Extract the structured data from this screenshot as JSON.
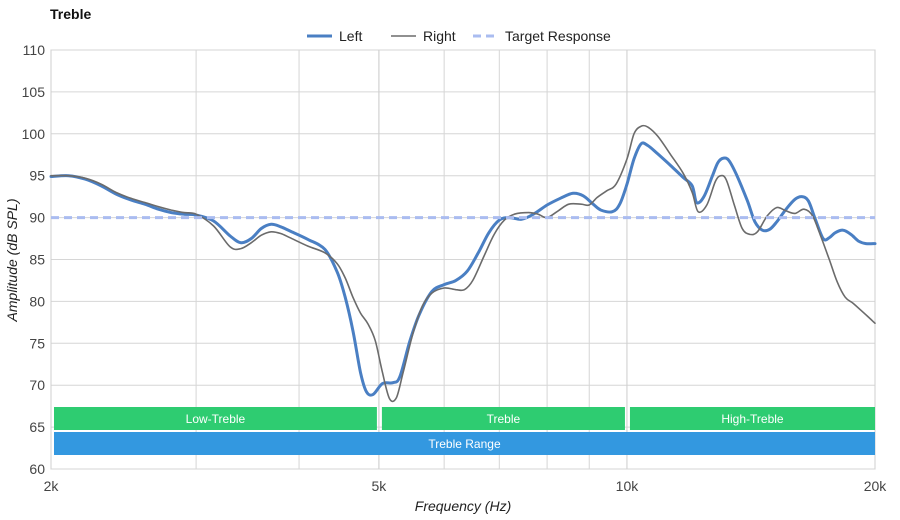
{
  "title": "Treble",
  "chart_data": {
    "type": "line",
    "title": "Treble",
    "xlabel": "Frequency (Hz)",
    "ylabel": "Amplitude (dB SPL)",
    "xscale": "log",
    "xlim": [
      2000,
      20000
    ],
    "ylim": [
      60,
      110
    ],
    "x_ticks": [
      {
        "value": 2000,
        "label": "2k"
      },
      {
        "value": 5000,
        "label": "5k"
      },
      {
        "value": 10000,
        "label": "10k"
      },
      {
        "value": 20000,
        "label": "20k"
      }
    ],
    "y_ticks": [
      60,
      65,
      70,
      75,
      80,
      85,
      90,
      95,
      100,
      105,
      110
    ],
    "grid": true,
    "legend": {
      "position": "top-center"
    },
    "series": [
      {
        "name": "Left",
        "color": "#4a7fc3",
        "style": "solid",
        "points": [
          [
            2000,
            94.9
          ],
          [
            2100,
            95.0
          ],
          [
            2200,
            94.6
          ],
          [
            2300,
            93.8
          ],
          [
            2400,
            92.8
          ],
          [
            2500,
            92.1
          ],
          [
            2600,
            91.6
          ],
          [
            2700,
            91.0
          ],
          [
            2800,
            90.6
          ],
          [
            2900,
            90.4
          ],
          [
            3000,
            90.3
          ],
          [
            3150,
            89.6
          ],
          [
            3300,
            87.8
          ],
          [
            3400,
            87.0
          ],
          [
            3500,
            87.5
          ],
          [
            3600,
            88.7
          ],
          [
            3700,
            89.2
          ],
          [
            3800,
            88.9
          ],
          [
            3900,
            88.4
          ],
          [
            4100,
            87.4
          ],
          [
            4300,
            86.2
          ],
          [
            4450,
            83.5
          ],
          [
            4550,
            80.5
          ],
          [
            4650,
            76.5
          ],
          [
            4750,
            71.5
          ],
          [
            4830,
            69.2
          ],
          [
            4920,
            68.9
          ],
          [
            5050,
            70.2
          ],
          [
            5200,
            70.3
          ],
          [
            5300,
            71.0
          ],
          [
            5450,
            75.2
          ],
          [
            5600,
            78.5
          ],
          [
            5800,
            81.2
          ],
          [
            6000,
            82.0
          ],
          [
            6200,
            82.5
          ],
          [
            6400,
            83.6
          ],
          [
            6600,
            85.8
          ],
          [
            6800,
            88.2
          ],
          [
            7000,
            89.7
          ],
          [
            7200,
            90.0
          ],
          [
            7450,
            89.8
          ],
          [
            7700,
            90.4
          ],
          [
            8000,
            91.5
          ],
          [
            8300,
            92.3
          ],
          [
            8600,
            92.9
          ],
          [
            8850,
            92.6
          ],
          [
            9100,
            91.6
          ],
          [
            9300,
            90.9
          ],
          [
            9600,
            90.7
          ],
          [
            9800,
            91.6
          ],
          [
            10000,
            94.0
          ],
          [
            10200,
            97.0
          ],
          [
            10400,
            98.8
          ],
          [
            10600,
            98.6
          ],
          [
            10900,
            97.6
          ],
          [
            11300,
            96.2
          ],
          [
            11700,
            94.8
          ],
          [
            12000,
            93.8
          ],
          [
            12150,
            91.8
          ],
          [
            12400,
            92.5
          ],
          [
            12700,
            95.0
          ],
          [
            12900,
            96.6
          ],
          [
            13100,
            97.1
          ],
          [
            13300,
            96.8
          ],
          [
            13600,
            95.0
          ],
          [
            14000,
            92.0
          ],
          [
            14300,
            89.5
          ],
          [
            14600,
            88.5
          ],
          [
            14900,
            88.6
          ],
          [
            15200,
            89.5
          ],
          [
            15600,
            91.0
          ],
          [
            16000,
            92.2
          ],
          [
            16300,
            92.5
          ],
          [
            16600,
            92.0
          ],
          [
            16900,
            90.0
          ],
          [
            17300,
            87.5
          ],
          [
            17600,
            87.6
          ],
          [
            17900,
            88.2
          ],
          [
            18300,
            88.5
          ],
          [
            18700,
            88.0
          ],
          [
            19100,
            87.2
          ],
          [
            19500,
            86.9
          ],
          [
            20000,
            86.9
          ]
        ]
      },
      {
        "name": "Right",
        "color": "#6b6b6b",
        "style": "solid",
        "points": [
          [
            2000,
            95.0
          ],
          [
            2100,
            95.0
          ],
          [
            2200,
            94.7
          ],
          [
            2300,
            94.0
          ],
          [
            2400,
            93.0
          ],
          [
            2500,
            92.3
          ],
          [
            2600,
            91.8
          ],
          [
            2700,
            91.3
          ],
          [
            2800,
            90.9
          ],
          [
            2900,
            90.6
          ],
          [
            3000,
            90.4
          ],
          [
            3150,
            89.0
          ],
          [
            3300,
            86.5
          ],
          [
            3400,
            86.3
          ],
          [
            3500,
            87.0
          ],
          [
            3600,
            87.9
          ],
          [
            3700,
            88.3
          ],
          [
            3800,
            88.1
          ],
          [
            3900,
            87.6
          ],
          [
            4100,
            86.6
          ],
          [
            4300,
            85.8
          ],
          [
            4450,
            84.5
          ],
          [
            4550,
            82.8
          ],
          [
            4650,
            80.5
          ],
          [
            4750,
            78.6
          ],
          [
            4850,
            77.3
          ],
          [
            4950,
            75.3
          ],
          [
            5050,
            71.5
          ],
          [
            5150,
            68.4
          ],
          [
            5250,
            68.5
          ],
          [
            5350,
            71.5
          ],
          [
            5500,
            76.2
          ],
          [
            5650,
            79.5
          ],
          [
            5800,
            81.0
          ],
          [
            6000,
            81.6
          ],
          [
            6200,
            81.4
          ],
          [
            6350,
            81.4
          ],
          [
            6500,
            82.5
          ],
          [
            6700,
            85.3
          ],
          [
            6900,
            88.0
          ],
          [
            7100,
            89.7
          ],
          [
            7300,
            90.4
          ],
          [
            7600,
            90.6
          ],
          [
            7800,
            90.4
          ],
          [
            8000,
            90.0
          ],
          [
            8250,
            90.8
          ],
          [
            8500,
            91.6
          ],
          [
            8800,
            91.6
          ],
          [
            9000,
            91.5
          ],
          [
            9200,
            92.4
          ],
          [
            9450,
            93.2
          ],
          [
            9700,
            94.0
          ],
          [
            10000,
            97.0
          ],
          [
            10200,
            100.0
          ],
          [
            10400,
            100.9
          ],
          [
            10600,
            100.8
          ],
          [
            10900,
            99.7
          ],
          [
            11300,
            97.5
          ],
          [
            11700,
            95.3
          ],
          [
            12000,
            93.0
          ],
          [
            12200,
            90.7
          ],
          [
            12500,
            91.5
          ],
          [
            12800,
            94.3
          ],
          [
            13000,
            95.0
          ],
          [
            13200,
            94.5
          ],
          [
            13500,
            91.5
          ],
          [
            13800,
            88.7
          ],
          [
            14100,
            88.0
          ],
          [
            14400,
            88.3
          ],
          [
            14800,
            90.2
          ],
          [
            15200,
            91.2
          ],
          [
            15600,
            90.8
          ],
          [
            16000,
            90.5
          ],
          [
            16400,
            91.0
          ],
          [
            16800,
            90.2
          ],
          [
            17200,
            87.7
          ],
          [
            17600,
            85.0
          ],
          [
            18000,
            82.3
          ],
          [
            18400,
            80.5
          ],
          [
            18800,
            79.8
          ],
          [
            19200,
            79.0
          ],
          [
            19600,
            78.2
          ],
          [
            20000,
            77.4
          ]
        ]
      },
      {
        "name": "Target Response",
        "color": "#aabcf0",
        "style": "dashed",
        "points": [
          [
            2000,
            90
          ],
          [
            20000,
            90
          ]
        ]
      }
    ],
    "bands": [
      {
        "label": "Low-Treble",
        "from": 2000,
        "to": 5000,
        "row": 1,
        "color": "#2ecc71"
      },
      {
        "label": "Treble",
        "from": 5000,
        "to": 10000,
        "row": 1,
        "color": "#2ecc71"
      },
      {
        "label": "High-Treble",
        "from": 10000,
        "to": 20000,
        "row": 1,
        "color": "#2ecc71"
      },
      {
        "label": "Treble Range",
        "from": 2000,
        "to": 20000,
        "row": 2,
        "color": "#3398e0"
      }
    ]
  }
}
